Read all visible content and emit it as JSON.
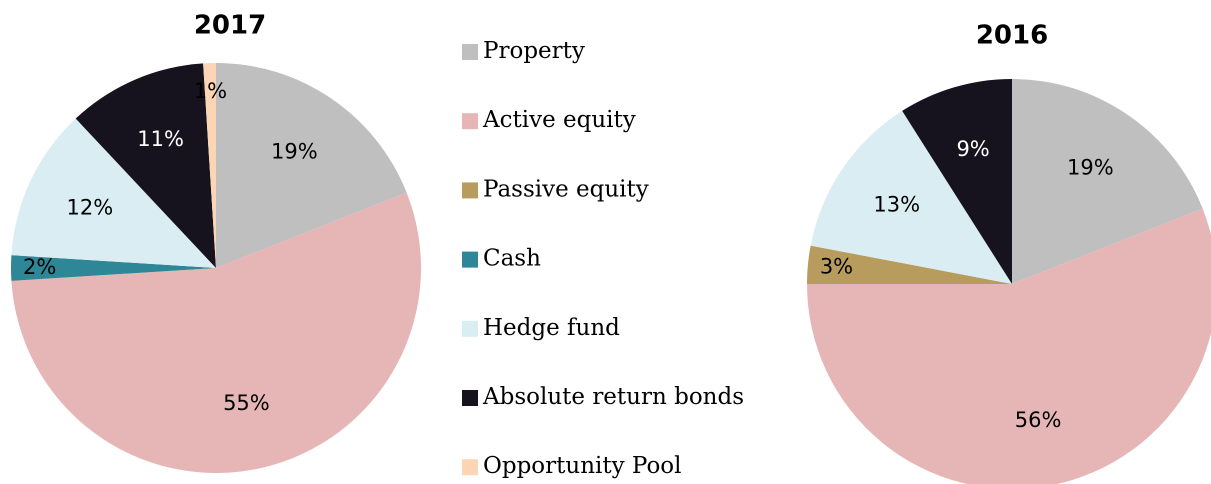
{
  "chart_data": [
    {
      "type": "pie",
      "title": "2017",
      "categories": [
        "Property",
        "Active equity",
        "Cash",
        "Hedge fund",
        "Absolute return bonds",
        "Opportunity Pool"
      ],
      "values": [
        19,
        55,
        2,
        12,
        11,
        1
      ],
      "value_labels": [
        "19%",
        "55%",
        "2%",
        "12%",
        "11%",
        "1%"
      ],
      "colors": [
        "#bfbfbf",
        "#e6b6b6",
        "#2e8796",
        "#daedf3",
        "#16131e",
        "#fcd5b5"
      ]
    },
    {
      "type": "pie",
      "title": "2016",
      "categories": [
        "Property",
        "Active equity",
        "Passive equity",
        "Hedge fund",
        "Absolute return bonds"
      ],
      "values": [
        19,
        56,
        3,
        13,
        9
      ],
      "value_labels": [
        "19%",
        "56%",
        "3%",
        "13%",
        "9%"
      ],
      "colors": [
        "#bfbfbf",
        "#e6b6b6",
        "#b89c5e",
        "#daedf3",
        "#16131e"
      ]
    }
  ],
  "legend": [
    {
      "name": "Property",
      "color": "#bfbfbf"
    },
    {
      "name": "Active equity",
      "color": "#e6b6b6"
    },
    {
      "name": "Passive equity",
      "color": "#b89c5e"
    },
    {
      "name": "Cash",
      "color": "#2e8796"
    },
    {
      "name": "Hedge fund",
      "color": "#daedf3"
    },
    {
      "name": "Absolute return bonds",
      "color": "#16131e"
    },
    {
      "name": "Opportunity Pool",
      "color": "#fcd5b5"
    }
  ]
}
